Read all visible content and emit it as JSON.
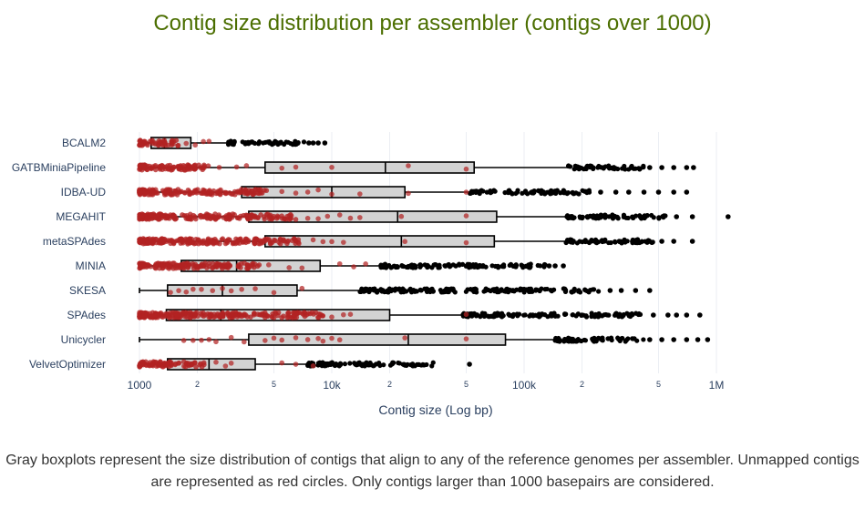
{
  "chart_data": {
    "type": "box",
    "title": "Contig size distribution per assembler (contigs over 1000)",
    "xlabel": "Contig size (Log bp)",
    "xscale": "log",
    "xlim": [
      850,
      1300000
    ],
    "tick_labels": {
      "major": [
        {
          "value": 1000,
          "label": "1000"
        },
        {
          "value": 10000,
          "label": "10k"
        },
        {
          "value": 100000,
          "label": "100k"
        },
        {
          "value": 1000000,
          "label": "1M"
        }
      ],
      "minor": [
        {
          "value": 2000,
          "label": "2"
        },
        {
          "value": 5000,
          "label": "5"
        },
        {
          "value": 20000,
          "label": "2"
        },
        {
          "value": 50000,
          "label": "5"
        },
        {
          "value": 200000,
          "label": "2"
        },
        {
          "value": 500000,
          "label": "5"
        }
      ]
    },
    "colors": {
      "box_fill": "#d3d3d3",
      "box_line": "#000000",
      "unmapped": "#b22222",
      "outlier": "#000000"
    },
    "categories": [
      "BCALM2",
      "GATBMiniaPipeline",
      "IDBA-UD",
      "MEGAHIT",
      "metaSPAdes",
      "MINIA",
      "SKESA",
      "SPAdes",
      "Unicycler",
      "VelvetOptimizer"
    ],
    "boxes": [
      {
        "name": "BCALM2",
        "lower_fence": 1000,
        "q1": 1150,
        "median": 1350,
        "q3": 1850,
        "upper_fence": 2900,
        "outlier_dense_range": [
          2900,
          7200
        ],
        "outlier_sparse": [
          7600,
          8000,
          8500,
          9200
        ],
        "unmapped_dense_range": [
          1000,
          1600
        ],
        "unmapped_sparse": [
          1750,
          1950,
          2150,
          2300
        ]
      },
      {
        "name": "GATBMiniaPipeline",
        "lower_fence": 1000,
        "q1": 4500,
        "median": 19000,
        "q3": 55000,
        "upper_fence": 170000,
        "outlier_dense_range": [
          170000,
          420000
        ],
        "outlier_sparse": [
          450000,
          520000,
          600000,
          700000,
          760000
        ],
        "unmapped_dense_range": [
          1000,
          2300
        ],
        "unmapped_sparse": [
          2600,
          3200,
          3600,
          5500,
          6500,
          10000,
          25000,
          50000
        ]
      },
      {
        "name": "IDBA-UD",
        "lower_fence": 1000,
        "q1": 3400,
        "median": 10000,
        "q3": 24000,
        "upper_fence": 52000,
        "outlier_dense_range": [
          52000,
          220000
        ],
        "outlier_sparse": [
          250000,
          300000,
          350000,
          420000,
          500000,
          600000,
          700000
        ],
        "unmapped_dense_range": [
          1000,
          4800
        ],
        "unmapped_sparse": [
          5500,
          6500,
          7500,
          8500,
          10000,
          14000,
          25000,
          50000
        ]
      },
      {
        "name": "MEGAHIT",
        "lower_fence": 1000,
        "q1": 3700,
        "median": 22000,
        "q3": 72000,
        "upper_fence": 165000,
        "outlier_dense_range": [
          165000,
          550000
        ],
        "outlier_sparse": [
          620000,
          750000,
          1150000
        ],
        "unmapped_dense_range": [
          1000,
          6500
        ],
        "unmapped_sparse": [
          7500,
          8500,
          9500,
          11000,
          12500,
          14000,
          23000,
          50000
        ]
      },
      {
        "name": "metaSPAdes",
        "lower_fence": 1000,
        "q1": 4500,
        "median": 23000,
        "q3": 70000,
        "upper_fence": 165000,
        "outlier_dense_range": [
          165000,
          470000
        ],
        "outlier_sparse": [
          520000,
          600000,
          750000
        ],
        "unmapped_dense_range": [
          1000,
          7000
        ],
        "unmapped_sparse": [
          8000,
          9000,
          10000,
          11500,
          24000,
          50000
        ]
      },
      {
        "name": "MINIA",
        "lower_fence": 1000,
        "q1": 1650,
        "median": 3200,
        "q3": 8700,
        "upper_fence": 18000,
        "outlier_dense_range": [
          18000,
          130000
        ],
        "outlier_sparse": [
          135000,
          145000,
          160000
        ],
        "unmapped_dense_range": [
          1000,
          4200
        ],
        "unmapped_sparse": [
          4700,
          6000,
          7000,
          11000,
          13000,
          15000
        ]
      },
      {
        "name": "SKESA",
        "lower_fence": 1000,
        "q1": 1400,
        "median": 2700,
        "q3": 6600,
        "upper_fence": 14000,
        "outlier_dense_range": [
          14000,
          250000
        ],
        "outlier_sparse": [
          280000,
          320000,
          380000,
          450000
        ],
        "unmapped_dense_range": [
          1000,
          1000
        ],
        "unmapped_sparse": [
          1450,
          1600,
          1750,
          1900,
          2100,
          2400,
          2700,
          3000,
          3400,
          4000,
          5000,
          7000
        ]
      },
      {
        "name": "SPAdes",
        "lower_fence": 1000,
        "q1": 1380,
        "median": 2650,
        "q3": 20000,
        "upper_fence": 48000,
        "outlier_dense_range": [
          48000,
          420000
        ],
        "outlier_sparse": [
          470000,
          560000,
          620000,
          700000,
          820000
        ],
        "unmapped_dense_range": [
          1000,
          9000
        ],
        "unmapped_sparse": [
          10000,
          11500,
          12500,
          50000
        ]
      },
      {
        "name": "Unicycler",
        "lower_fence": 1000,
        "q1": 3700,
        "median": 25000,
        "q3": 80000,
        "upper_fence": 145000,
        "outlier_dense_range": [
          145000,
          420000
        ],
        "outlier_sparse": [
          450000,
          520000,
          600000,
          700000,
          800000,
          900000
        ],
        "unmapped_dense_range": [
          1000,
          1000
        ],
        "unmapped_sparse": [
          1700,
          1900,
          2100,
          2300,
          2500,
          3000,
          3500,
          4500,
          5000,
          5500,
          6500,
          7500,
          8500,
          9000,
          10000,
          11000,
          24000,
          50000
        ]
      },
      {
        "name": "VelvetOptimizer",
        "lower_fence": 1000,
        "q1": 1400,
        "median": 2300,
        "q3": 4000,
        "upper_fence": 7500,
        "outlier_dense_range": [
          7500,
          35000
        ],
        "outlier_sparse": [
          52000
        ],
        "unmapped_dense_range": [
          1000,
          2200
        ],
        "unmapped_sparse": [
          2500,
          2800,
          3000,
          5500,
          6500,
          8000
        ]
      }
    ]
  },
  "caption": "Gray boxplots represent the size distribution of contigs that align to any of the reference genomes per assembler. Unmapped contigs are represented as red circles. Only contigs larger than 1000 basepairs are considered."
}
